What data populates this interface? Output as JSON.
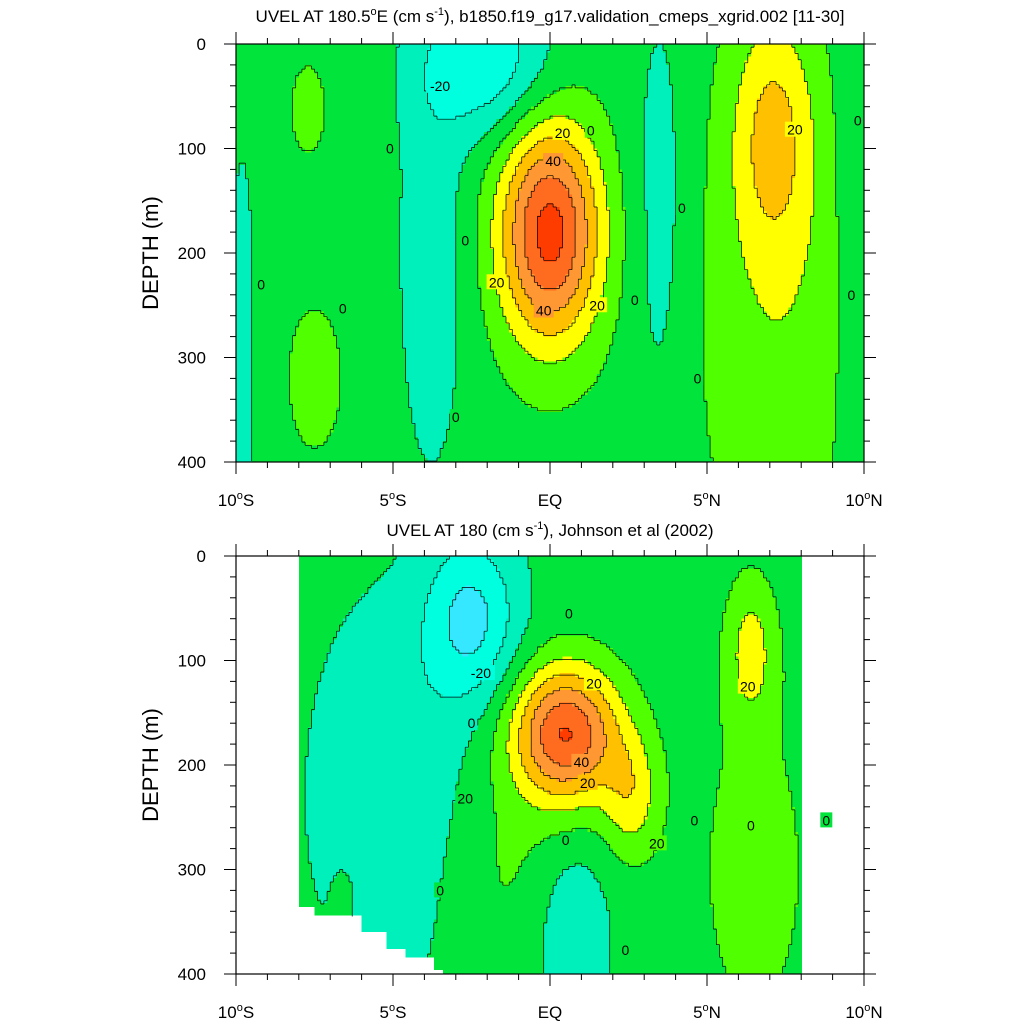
{
  "chart_data": [
    {
      "type": "contour",
      "title_prefix": "UVEL AT 180.5",
      "title_deg": "o",
      "title_after_deg": "E (cm s",
      "title_sup": "-1",
      "title_suffix": "), b1850.f19_g17.validation_cmeps_xgrid.002 [11-30]",
      "ylabel": "DEPTH (m)",
      "xlim": [
        -10,
        10
      ],
      "ylim": [
        400,
        0
      ],
      "y_ticks": [
        {
          "v": 0,
          "label": "0"
        },
        {
          "v": 100,
          "label": "100"
        },
        {
          "v": 200,
          "label": "200"
        },
        {
          "v": 300,
          "label": "300"
        },
        {
          "v": 400,
          "label": "400"
        }
      ],
      "x_ticks": [
        {
          "v": -10,
          "num": "10",
          "deg": "o",
          "hem": "S"
        },
        {
          "v": -5,
          "num": "5",
          "deg": "o",
          "hem": "S"
        },
        {
          "v": 0,
          "num": "EQ",
          "deg": "",
          "hem": ""
        },
        {
          "v": 5,
          "num": "5",
          "deg": "o",
          "hem": "N"
        },
        {
          "v": 10,
          "num": "10",
          "deg": "o",
          "hem": "N"
        }
      ],
      "contour_interval": 10,
      "lon_range": [
        -10,
        10
      ],
      "contour_labels": [
        {
          "x": -3.5,
          "y": 40,
          "text": "-20"
        },
        {
          "x": 0.4,
          "y": 85,
          "text": "20"
        },
        {
          "x": 0.1,
          "y": 112,
          "text": "40"
        },
        {
          "x": -1.7,
          "y": 228,
          "text": "20"
        },
        {
          "x": -0.2,
          "y": 255,
          "text": "40"
        },
        {
          "x": 1.5,
          "y": 250,
          "text": "20"
        },
        {
          "x": 7.8,
          "y": 82,
          "text": "20"
        },
        {
          "x": -5.1,
          "y": 100,
          "text": "0"
        },
        {
          "x": 1.3,
          "y": 83,
          "text": "0"
        },
        {
          "x": 9.8,
          "y": 73,
          "text": "0"
        },
        {
          "x": 4.2,
          "y": 157,
          "text": "0"
        },
        {
          "x": -2.7,
          "y": 188,
          "text": "0"
        },
        {
          "x": -9.2,
          "y": 230,
          "text": "0"
        },
        {
          "x": -6.6,
          "y": 253,
          "text": "0"
        },
        {
          "x": 2.7,
          "y": 245,
          "text": "0"
        },
        {
          "x": 9.6,
          "y": 240,
          "text": "0"
        },
        {
          "x": 4.7,
          "y": 320,
          "text": "0"
        },
        {
          "x": -3.0,
          "y": 357,
          "text": "0"
        }
      ]
    },
    {
      "type": "contour",
      "title_prefix": "UVEL AT 180 (cm s",
      "title_sup": "-1",
      "title_suffix": "), Johnson et al (2002)",
      "ylabel": "DEPTH (m)",
      "xlim": [
        -10,
        10
      ],
      "ylim": [
        400,
        0
      ],
      "y_ticks": [
        {
          "v": 0,
          "label": "0"
        },
        {
          "v": 100,
          "label": "100"
        },
        {
          "v": 200,
          "label": "200"
        },
        {
          "v": 300,
          "label": "300"
        },
        {
          "v": 400,
          "label": "400"
        }
      ],
      "x_ticks": [
        {
          "v": -10,
          "num": "10",
          "deg": "o",
          "hem": "S"
        },
        {
          "v": -5,
          "num": "5",
          "deg": "o",
          "hem": "S"
        },
        {
          "v": 0,
          "num": "EQ",
          "deg": "",
          "hem": ""
        },
        {
          "v": 5,
          "num": "5",
          "deg": "o",
          "hem": "N"
        },
        {
          "v": 10,
          "num": "10",
          "deg": "o",
          "hem": "N"
        }
      ],
      "contour_interval": 10,
      "lon_range": [
        -8,
        8
      ],
      "contour_labels": [
        {
          "x": -2.2,
          "y": 112,
          "text": "-20"
        },
        {
          "x": 1.4,
          "y": 122,
          "text": "20"
        },
        {
          "x": 1.0,
          "y": 197,
          "text": "40"
        },
        {
          "x": 1.2,
          "y": 217,
          "text": "20"
        },
        {
          "x": -2.7,
          "y": 232,
          "text": "20"
        },
        {
          "x": 3.4,
          "y": 275,
          "text": "20"
        },
        {
          "x": 6.3,
          "y": 125,
          "text": "20"
        },
        {
          "x": 0.6,
          "y": 55,
          "text": "0"
        },
        {
          "x": -2.5,
          "y": 160,
          "text": "0"
        },
        {
          "x": 4.6,
          "y": 253,
          "text": "0"
        },
        {
          "x": 6.4,
          "y": 258,
          "text": "0"
        },
        {
          "x": 8.8,
          "y": 253,
          "text": "0"
        },
        {
          "x": 0.5,
          "y": 272,
          "text": "0"
        },
        {
          "x": -3.5,
          "y": 320,
          "text": "0"
        },
        {
          "x": 2.4,
          "y": 377,
          "text": "0"
        }
      ]
    }
  ]
}
